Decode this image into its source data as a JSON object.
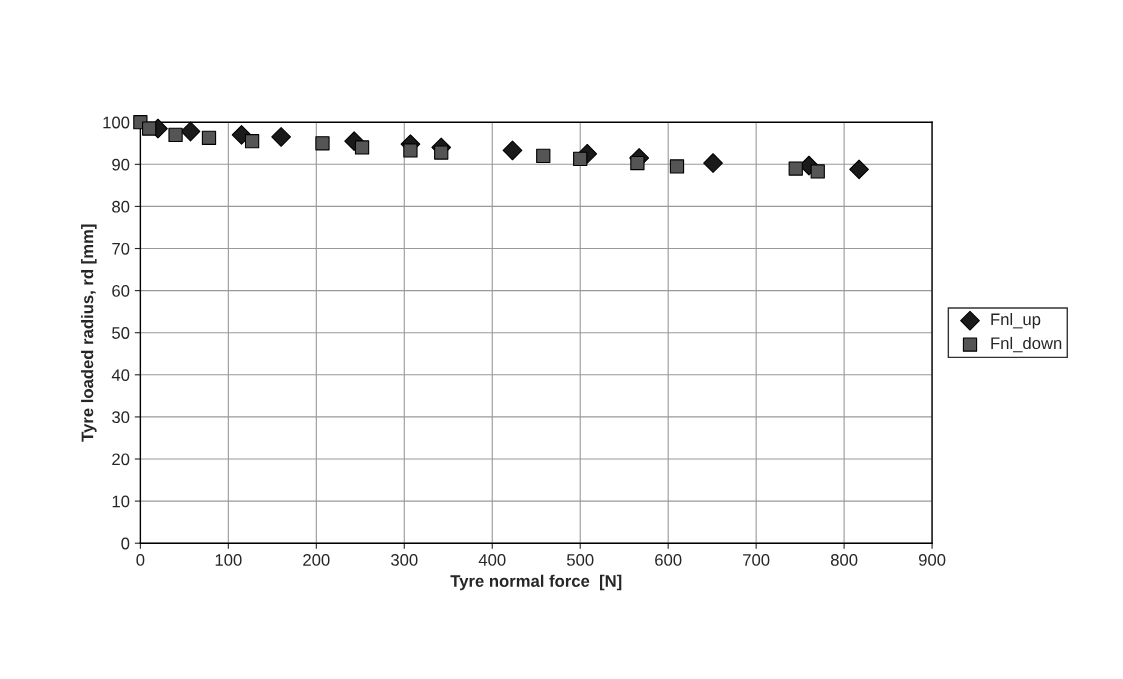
{
  "chart_data": {
    "type": "scatter",
    "xlabel": "Tyre normal force  [N]",
    "ylabel": "Tyre loaded radius, rd [mm]",
    "series": [
      {
        "name": "Fnl_up",
        "color": "#1a1a1a",
        "marker": "diamond",
        "x": [
          20,
          57,
          115,
          160,
          243,
          307,
          342,
          423,
          508,
          567,
          651,
          760,
          817
        ],
        "values": [
          98.5,
          97.8,
          97,
          96.5,
          95.5,
          94.8,
          94,
          93.3,
          92.5,
          91.5,
          90.3,
          89.7,
          88.8
        ]
      },
      {
        "name": "Fnl_down",
        "color": "#555555",
        "marker": "square",
        "x": [
          0,
          10,
          40,
          78,
          127,
          207,
          252,
          307,
          342,
          458,
          500,
          565,
          610,
          745,
          770
        ],
        "values": [
          100,
          98.5,
          97,
          96.3,
          95.5,
          95,
          94,
          93.3,
          92.8,
          92,
          91.3,
          90.3,
          89.5,
          89,
          88.3
        ]
      }
    ],
    "xlim": [
      0,
      900
    ],
    "xticks": [
      0,
      100,
      200,
      300,
      400,
      500,
      600,
      700,
      800,
      900
    ],
    "ylim": [
      0,
      100
    ],
    "yticks": [
      0,
      10,
      20,
      30,
      40,
      50,
      60,
      70,
      80,
      90,
      100
    ],
    "grid": true,
    "legend": "right"
  }
}
